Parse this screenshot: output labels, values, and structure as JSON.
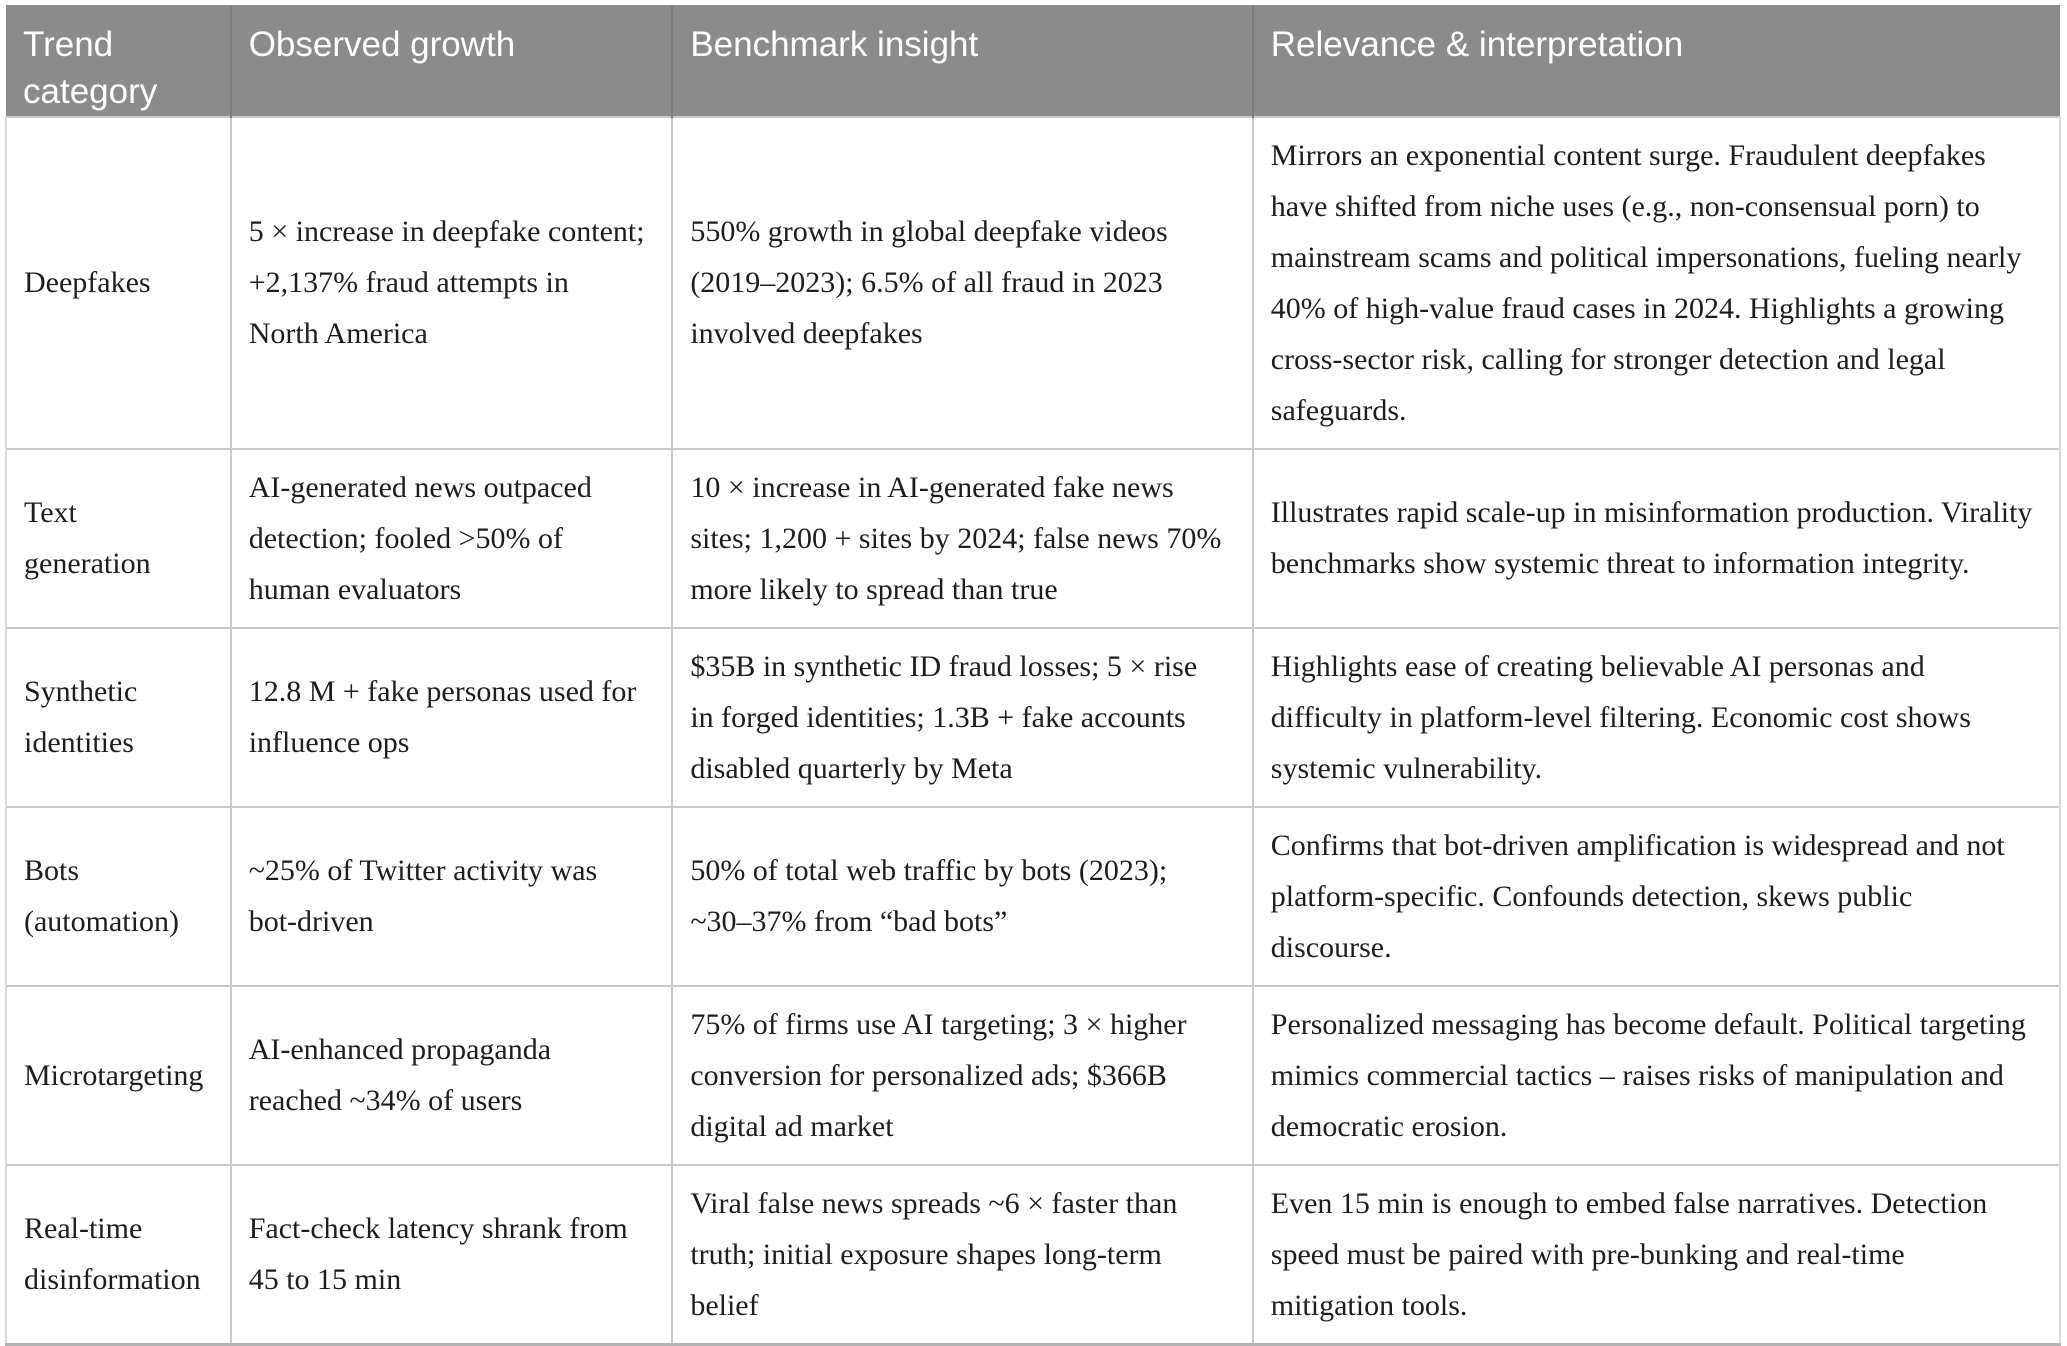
{
  "table": {
    "columns": [
      "Trend category",
      "Observed growth",
      "Benchmark insight",
      "Relevance & interpretation"
    ],
    "rows": [
      {
        "category": "Deepfakes",
        "observed": "5 × increase in deepfake content; +2,137% fraud attempts in North America",
        "benchmark": "550% growth in global deepfake videos (2019–2023); 6.5% of all fraud in 2023 involved deepfakes",
        "relevance": "Mirrors an exponential content surge. Fraudulent deepfakes have shifted from niche uses (e.g., non-consensual porn) to mainstream scams and political impersonations, fueling nearly 40% of high-value fraud cases in 2024. Highlights a growing cross-sector risk, calling for stronger detection and legal safeguards."
      },
      {
        "category": "Text generation",
        "observed": "AI-generated news outpaced detection; fooled >50% of human evaluators",
        "benchmark": "10 × increase in AI-generated fake news sites; 1,200 + sites by 2024; false news 70% more likely to spread than true",
        "relevance": "Illustrates rapid scale-up in misinformation production. Virality benchmarks show systemic threat to information integrity."
      },
      {
        "category": "Synthetic identities",
        "observed": "12.8 M + fake personas used for influence ops",
        "benchmark": "$35B in synthetic ID fraud losses; 5 × rise in forged identities; 1.3B + fake accounts disabled quarterly by Meta",
        "relevance": "Highlights ease of creating believable AI personas and difficulty in platform-level filtering. Economic cost shows systemic vulnerability."
      },
      {
        "category": "Bots (automation)",
        "observed": "~25% of Twitter activity was bot-driven",
        "benchmark": "50% of total web traffic by bots (2023); ~30–37% from “bad bots”",
        "relevance": "Confirms that bot-driven amplification is widespread and not platform-specific. Confounds detection, skews public discourse."
      },
      {
        "category": "Microtargeting",
        "observed": "AI-enhanced propaganda reached ~34% of users",
        "benchmark": "75% of firms use AI targeting; 3 × higher conversion for personalized ads; $366B digital ad market",
        "relevance": "Personalized messaging has become default. Political targeting mimics commercial tactics – raises risks of manipulation and democratic erosion."
      },
      {
        "category": "Real-time disinformation",
        "observed": "Fact-check latency shrank from 45 to 15 min",
        "benchmark": "Viral false news spreads ~6 × faster than truth; initial exposure shapes long-term belief",
        "relevance": "Even 15 min is enough to embed false narratives. Detection speed must be paired with pre-bunking and real-time mitigation tools."
      }
    ],
    "colors": {
      "header_bg": "#8b8b8b",
      "header_text": "#ffffff",
      "body_text": "#1d1d1f",
      "grid_line": "#c9c9c9"
    }
  }
}
